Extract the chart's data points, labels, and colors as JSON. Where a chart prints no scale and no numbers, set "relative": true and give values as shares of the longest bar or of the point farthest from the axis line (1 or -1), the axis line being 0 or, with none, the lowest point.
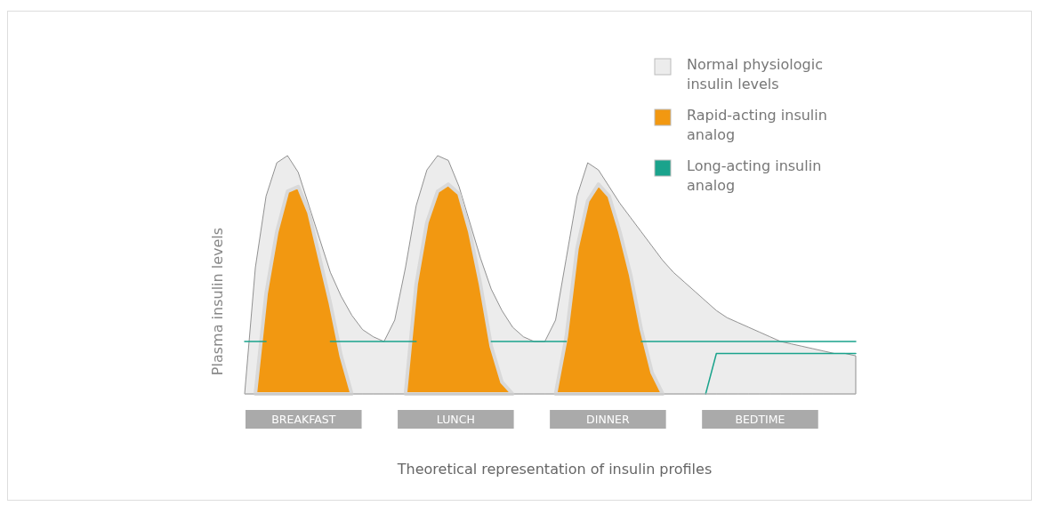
{
  "chart_data": {
    "type": "area",
    "relative": true,
    "ylabel": "Plasma insulin levels",
    "xlabel": "Theoretical representation of insulin profiles",
    "legend": "top right",
    "categories": [
      null,
      null,
      null,
      null,
      null,
      null,
      null,
      null,
      null,
      null,
      null,
      null,
      null,
      null,
      null,
      null,
      null,
      null,
      null,
      null,
      null,
      null,
      null,
      null,
      null,
      null,
      null,
      null,
      null,
      null,
      null,
      null,
      null,
      null,
      null,
      null,
      null,
      null,
      null,
      null,
      null,
      null,
      null,
      null,
      null,
      null,
      null,
      null,
      null,
      null,
      null,
      null,
      null,
      null,
      null,
      null,
      null,
      null
    ],
    "series": [
      {
        "name": "Normal physiologic insulin levels",
        "color": "#ececec",
        "values": [
          0,
          0.53,
          0.83,
          0.97,
          1.0,
          0.93,
          0.79,
          0.65,
          0.51,
          0.41,
          0.33,
          0.27,
          0.24,
          0.22,
          0.31,
          0.53,
          0.79,
          0.94,
          1.0,
          0.98,
          0.87,
          0.72,
          0.57,
          0.44,
          0.35,
          0.28,
          0.24,
          0.22,
          0.22,
          0.31,
          0.57,
          0.83,
          0.97,
          0.94,
          0.87,
          0.8,
          0.74,
          0.68,
          0.62,
          0.56,
          0.51,
          0.47,
          0.43,
          0.39,
          0.35,
          0.32,
          0.3,
          0.28,
          0.26,
          0.24,
          0.22,
          0.21,
          0.2,
          0.19,
          0.18,
          0.17,
          0.17,
          0.16
        ]
      },
      {
        "name": "Rapid-acting insulin analog",
        "color": "#f29811",
        "values": [
          null,
          0,
          0.42,
          0.68,
          0.85,
          0.87,
          0.76,
          0.57,
          0.38,
          0.16,
          0,
          null,
          null,
          null,
          null,
          0,
          0.46,
          0.72,
          0.85,
          0.88,
          0.84,
          0.68,
          0.46,
          0.2,
          0.05,
          0,
          null,
          null,
          null,
          0,
          0.24,
          0.61,
          0.81,
          0.88,
          0.83,
          0.68,
          0.5,
          0.27,
          0.09,
          0,
          null,
          null,
          null,
          null,
          null,
          null,
          null,
          null,
          null,
          null,
          null,
          null,
          null,
          null,
          null,
          null,
          null,
          null
        ]
      },
      {
        "name": "Long-acting insulin analog",
        "type": "line",
        "color": "#1aa38c",
        "values": [
          0.22,
          0.22,
          0.22,
          null,
          null,
          null,
          null,
          null,
          0.22,
          0.22,
          0.22,
          0.22,
          0.22,
          0.22,
          0.22,
          0.22,
          0.22,
          null,
          null,
          null,
          null,
          null,
          null,
          0.22,
          0.22,
          0.22,
          0.22,
          0.22,
          0.22,
          0.22,
          0.22,
          null,
          null,
          null,
          null,
          null,
          null,
          0.22,
          0.22,
          0.22,
          0.22,
          0.22,
          0.22,
          0.22,
          0.22,
          0.22,
          0.22,
          0.22,
          0.22,
          0.22,
          0.22,
          0.22,
          0.22,
          0.22,
          0.22,
          0.22,
          0.22,
          0.22
        ]
      },
      {
        "type": "line",
        "color": "#1aa38c",
        "values": [
          null,
          null,
          null,
          null,
          null,
          null,
          null,
          null,
          null,
          null,
          null,
          null,
          null,
          null,
          null,
          null,
          null,
          null,
          null,
          null,
          null,
          null,
          null,
          null,
          null,
          null,
          null,
          null,
          null,
          null,
          null,
          null,
          null,
          null,
          null,
          null,
          null,
          null,
          null,
          null,
          null,
          null,
          null,
          0,
          0.17,
          0.17,
          0.17,
          0.17,
          0.17,
          0.17,
          0.17,
          0.17,
          0.17,
          0.17,
          0.17,
          0.17,
          0.17,
          0.17
        ]
      }
    ],
    "annotations": [
      "BREAKFAST",
      "LUNCH",
      "DINNER",
      "BEDTIME"
    ]
  }
}
